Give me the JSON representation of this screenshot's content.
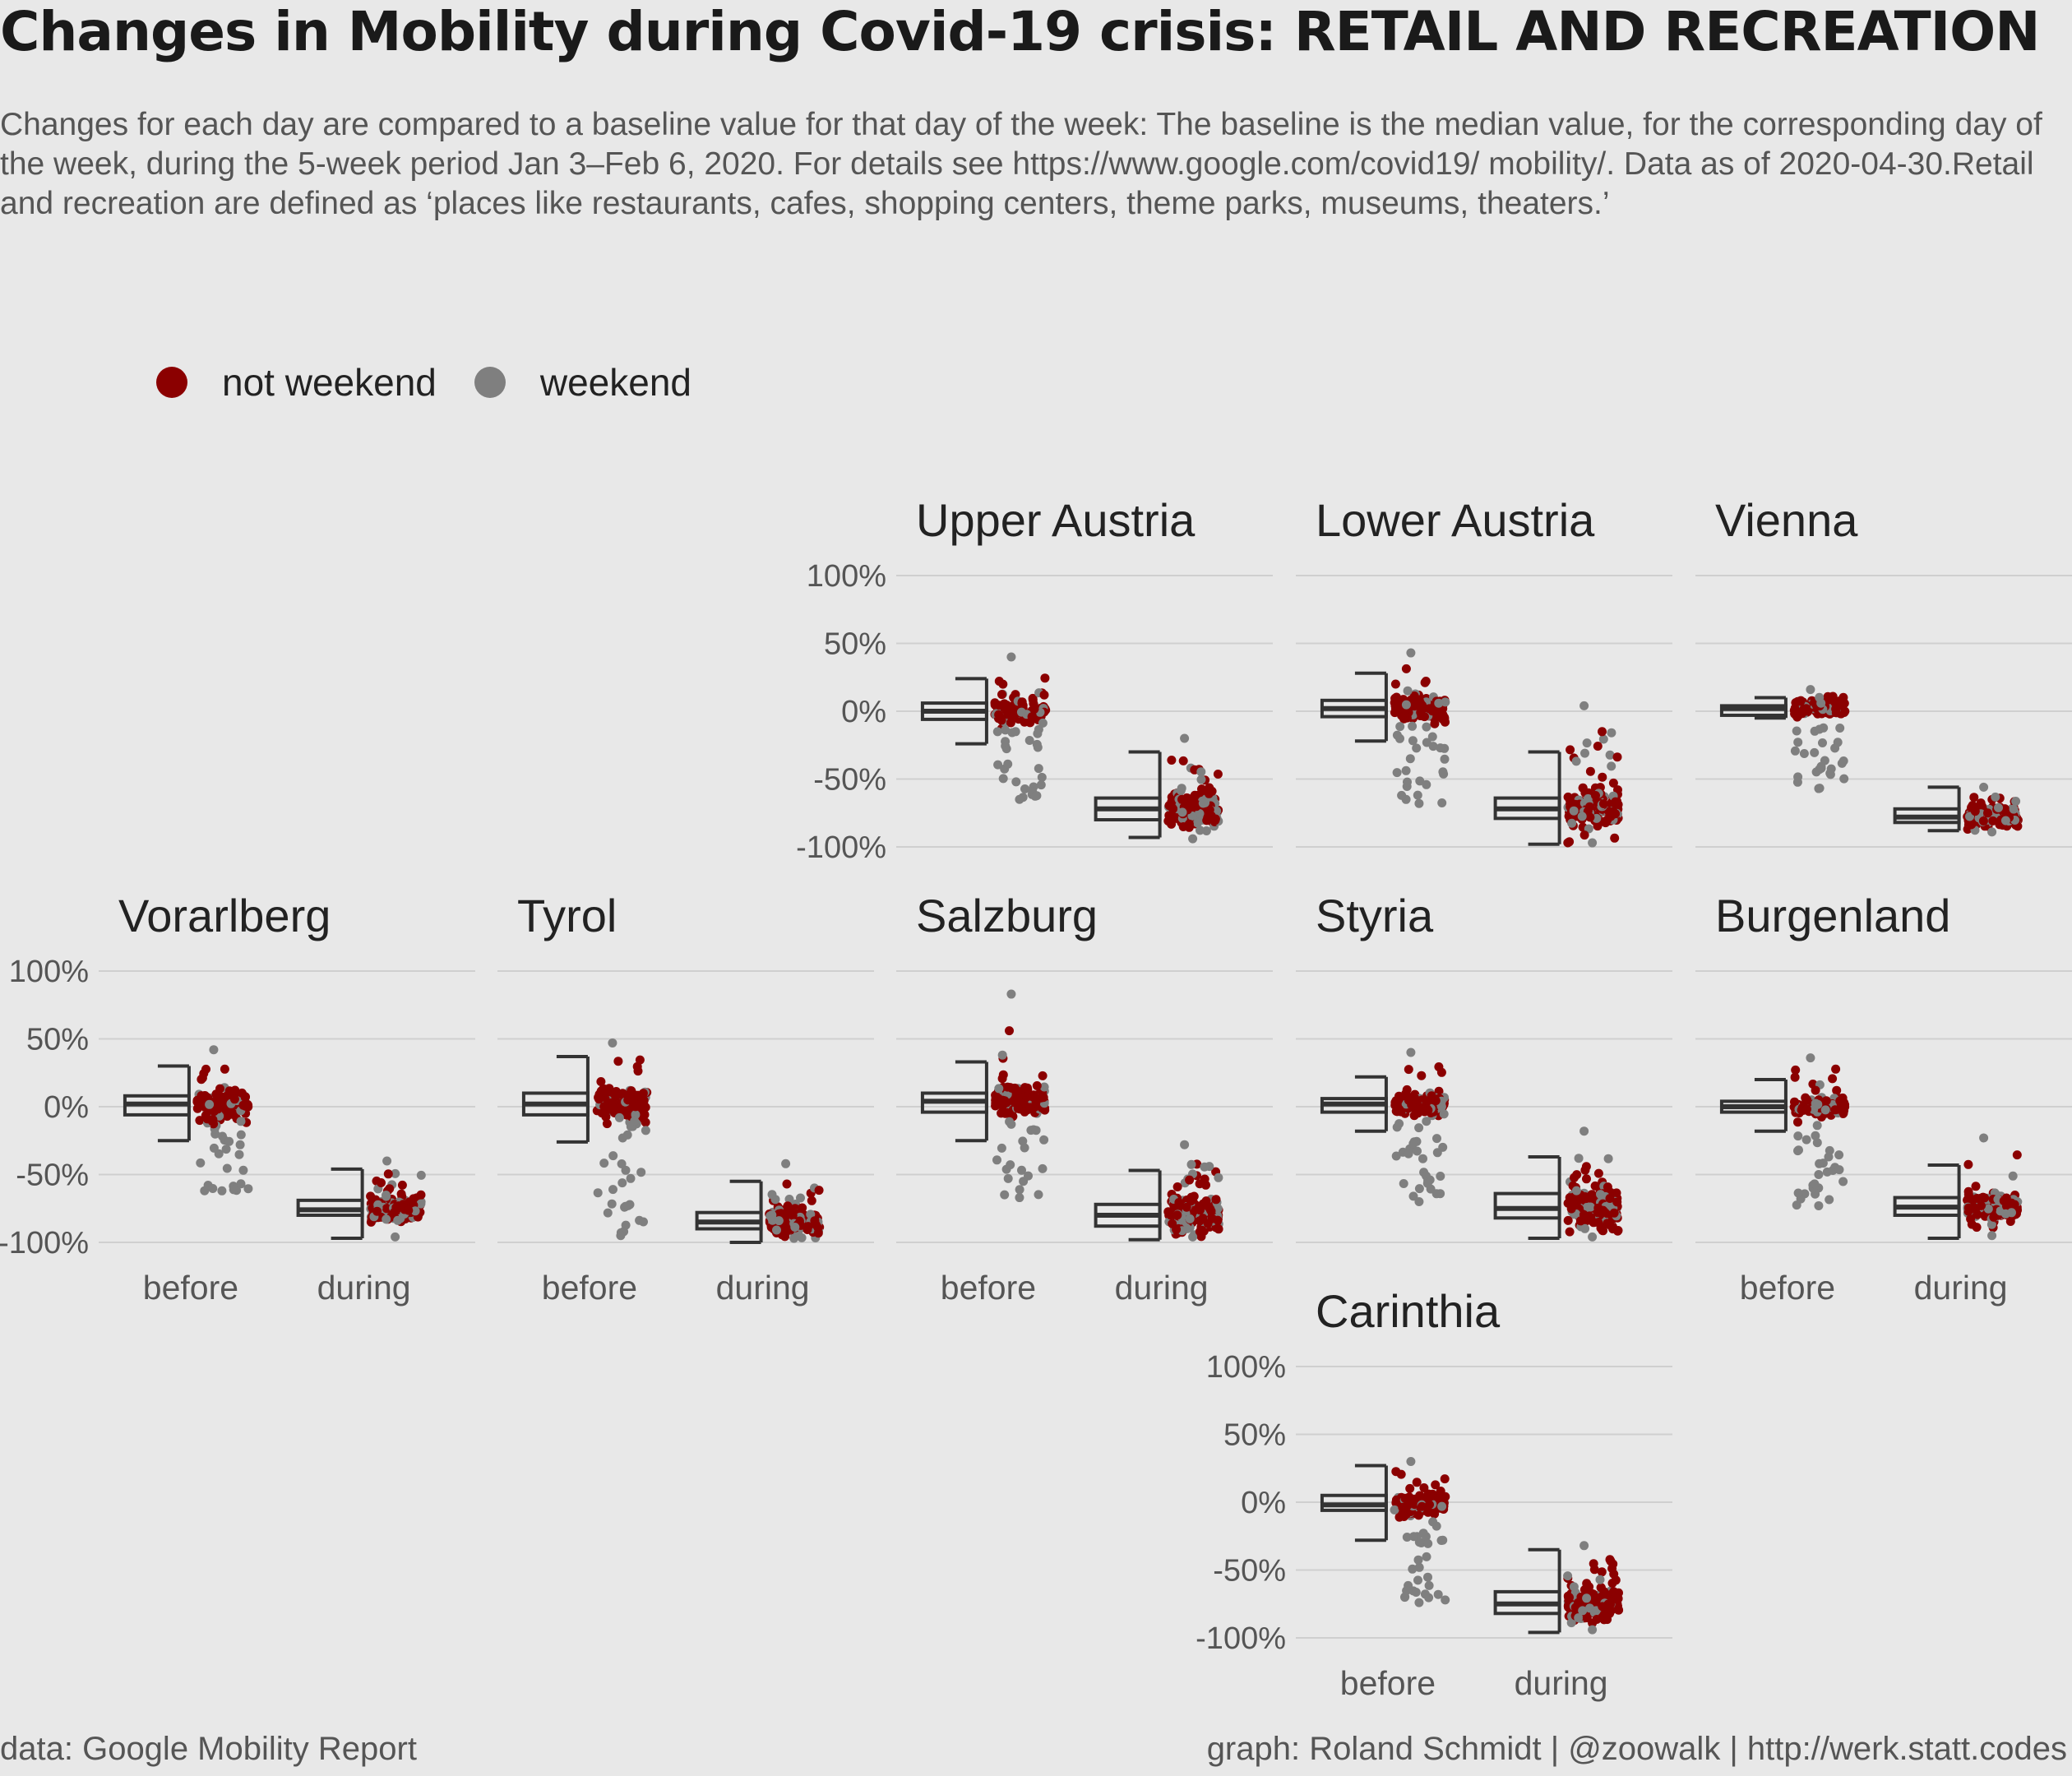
{
  "title": "Changes in Mobility during Covid-19 crisis: RETAIL AND RECREATION",
  "subtitle": "Changes for each day are compared to a baseline value for that day of the week: The baseline is the median value, for the corresponding day of the week, during the 5-week period Jan 3–Feb 6, 2020. For details see https://www.google.com/covid19/ mobility/. Data as of 2020-04-30.Retail and recreation are defined as ‘places like restaurants, cafes, shopping centers, theme parks, museums, theaters.’",
  "caption_left": "data: Google Mobility Report",
  "caption_right": "graph: Roland Schmidt | @zoowalk | http://werk.statt.codes",
  "colors": {
    "not_weekend": "#8b0000",
    "weekend": "#7f7f7f",
    "box": "#333333",
    "grid": "#cfcfcf",
    "background": "#e8e8e8"
  },
  "legend": [
    {
      "label": "not weekend",
      "color": "#8b0000"
    },
    {
      "label": "weekend",
      "color": "#7f7f7f"
    }
  ],
  "chart_data": {
    "type": "scatter",
    "subtype": "faceted jittered scatter with half boxplots",
    "ylim": [
      -100,
      100
    ],
    "y_ticks": [
      100,
      50,
      0,
      -50,
      -100
    ],
    "y_tick_labels": [
      "100%",
      "50%",
      "0%",
      "-50%",
      "-100%"
    ],
    "categories": [
      "before",
      "during"
    ],
    "grid": true,
    "legend_position": "top-left",
    "panels": [
      {
        "name": "Upper Austria",
        "before": {
          "min": -24,
          "q1": -6,
          "median": 0,
          "q3": 6,
          "max": 24,
          "points_min": -65,
          "points_max": 40,
          "weekend_low": true
        },
        "during": {
          "min": -93,
          "q1": -80,
          "median": -72,
          "q3": -64,
          "max": -30,
          "points_min": -94,
          "points_max": -20
        }
      },
      {
        "name": "Lower Austria",
        "before": {
          "min": -22,
          "q1": -4,
          "median": 2,
          "q3": 8,
          "max": 28,
          "points_min": -68,
          "points_max": 43,
          "weekend_low": true
        },
        "during": {
          "min": -98,
          "q1": -79,
          "median": -72,
          "q3": -64,
          "max": -30,
          "points_min": -97,
          "points_max": 4
        }
      },
      {
        "name": "Vienna",
        "before": {
          "min": -5,
          "q1": -3,
          "median": 2,
          "q3": 4,
          "max": 10,
          "points_min": -57,
          "points_max": 16,
          "weekend_low": true
        },
        "during": {
          "min": -88,
          "q1": -82,
          "median": -78,
          "q3": -72,
          "max": -56,
          "points_min": -89,
          "points_max": -56
        }
      },
      {
        "name": "Vorarlberg",
        "before": {
          "min": -25,
          "q1": -6,
          "median": 2,
          "q3": 8,
          "max": 30,
          "points_min": -62,
          "points_max": 42,
          "weekend_low": true
        },
        "during": {
          "min": -97,
          "q1": -80,
          "median": -76,
          "q3": -69,
          "max": -46,
          "points_min": -96,
          "points_max": -40
        }
      },
      {
        "name": "Tyrol",
        "before": {
          "min": -26,
          "q1": -6,
          "median": 2,
          "q3": 10,
          "max": 37,
          "points_min": -95,
          "points_max": 47,
          "weekend_low": true
        },
        "during": {
          "min": -100,
          "q1": -90,
          "median": -85,
          "q3": -78,
          "max": -55,
          "points_min": -97,
          "points_max": -42
        }
      },
      {
        "name": "Salzburg",
        "before": {
          "min": -25,
          "q1": -4,
          "median": 4,
          "q3": 10,
          "max": 33,
          "points_min": -67,
          "points_max": 83,
          "weekend_low": true
        },
        "during": {
          "min": -98,
          "q1": -88,
          "median": -80,
          "q3": -72,
          "max": -47,
          "points_min": -96,
          "points_max": -28
        }
      },
      {
        "name": "Styria",
        "before": {
          "min": -18,
          "q1": -4,
          "median": 2,
          "q3": 6,
          "max": 22,
          "points_min": -70,
          "points_max": 40,
          "weekend_low": true
        },
        "during": {
          "min": -97,
          "q1": -82,
          "median": -75,
          "q3": -64,
          "max": -37,
          "points_min": -96,
          "points_max": -18
        }
      },
      {
        "name": "Burgenland",
        "before": {
          "min": -18,
          "q1": -4,
          "median": 0,
          "q3": 4,
          "max": 20,
          "points_min": -73,
          "points_max": 36,
          "weekend_low": true
        },
        "during": {
          "min": -97,
          "q1": -80,
          "median": -74,
          "q3": -67,
          "max": -43,
          "points_min": -95,
          "points_max": -23
        }
      },
      {
        "name": "Carinthia",
        "before": {
          "min": -28,
          "q1": -6,
          "median": -2,
          "q3": 5,
          "max": 27,
          "points_min": -74,
          "points_max": 30,
          "weekend_low": true
        },
        "during": {
          "min": -96,
          "q1": -82,
          "median": -75,
          "q3": -66,
          "max": -35,
          "points_min": -94,
          "points_max": -32
        }
      }
    ]
  }
}
